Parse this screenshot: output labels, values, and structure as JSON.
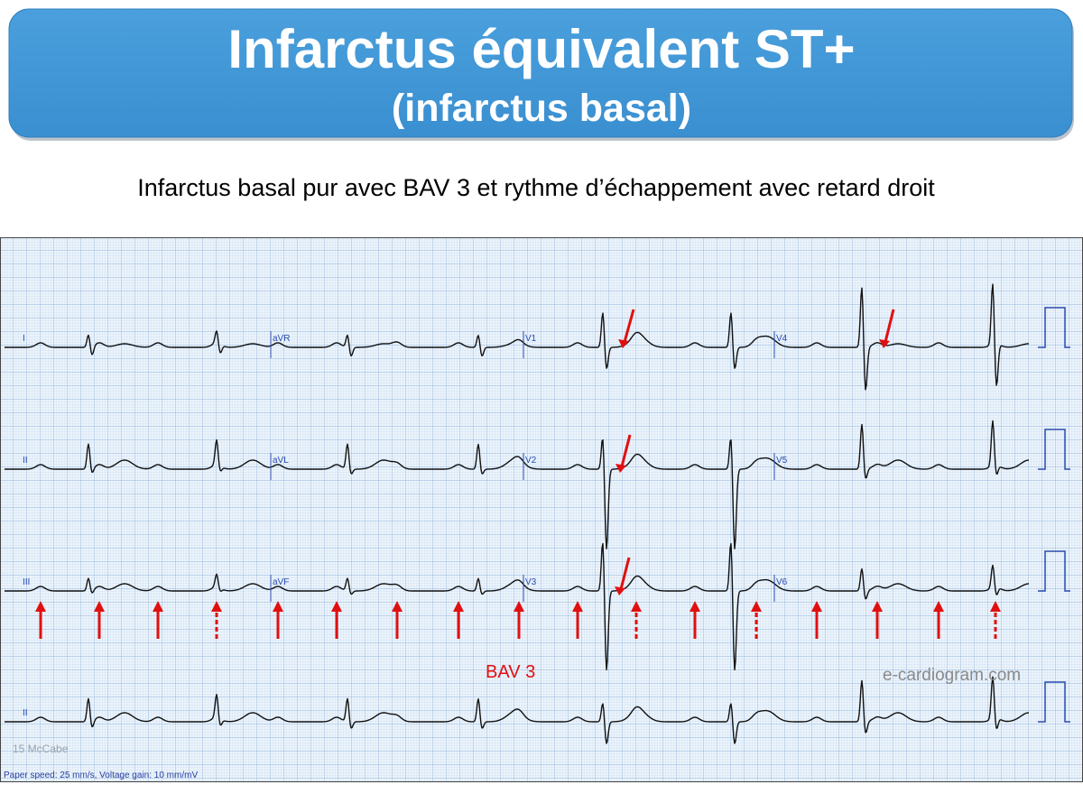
{
  "header": {
    "title": "Infarctus équivalent ST+",
    "subtitle": "(infarctus basal)"
  },
  "caption": "Infarctus basal pur avec BAV 3 et rythme d’échappement avec retard droit",
  "ecg": {
    "leads": [
      {
        "label": "I"
      },
      {
        "label": "aVR"
      },
      {
        "label": "V1"
      },
      {
        "label": "V4"
      },
      {
        "label": "II"
      },
      {
        "label": "aVL"
      },
      {
        "label": "V2"
      },
      {
        "label": "V5"
      },
      {
        "label": "III"
      },
      {
        "label": "aVF"
      },
      {
        "label": "V3"
      },
      {
        "label": "V6"
      },
      {
        "label": "II"
      }
    ],
    "annotation": "BAV 3",
    "watermark": "e-cardiogram.com",
    "source": "15 McCabe",
    "settings": "Paper speed: 25 mm/s, Voltage gain: 10 mm/mV"
  }
}
